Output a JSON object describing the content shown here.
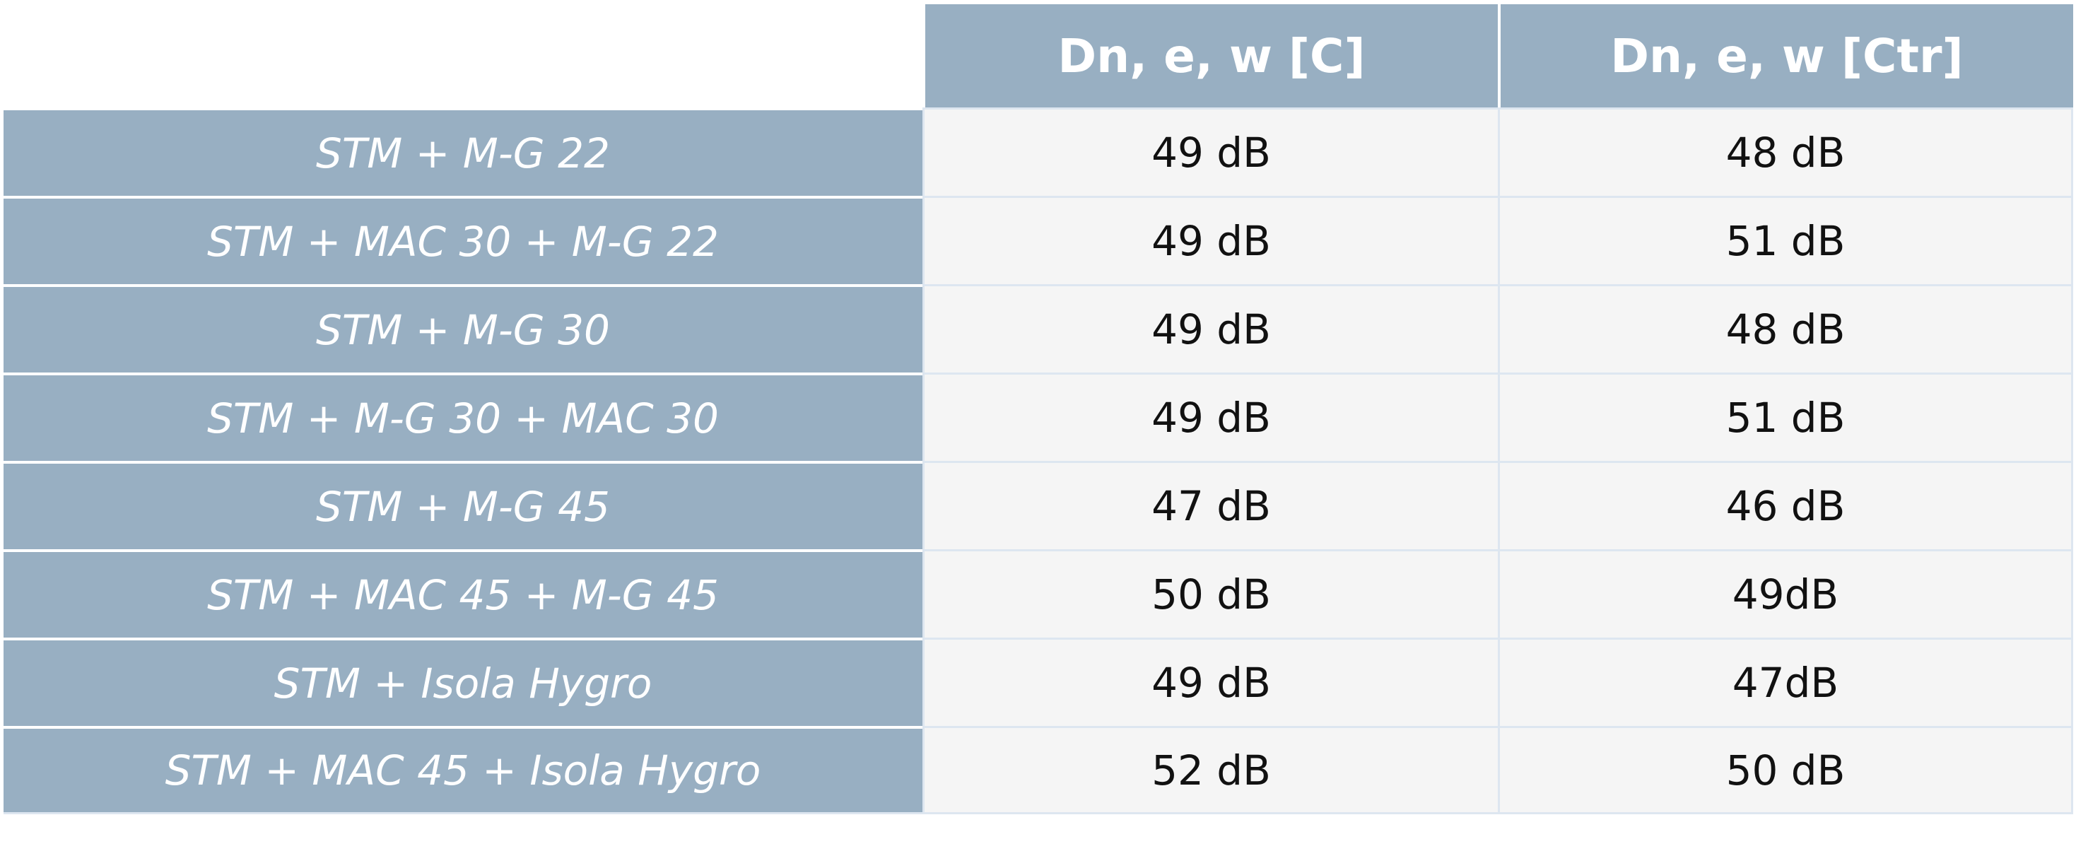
{
  "table": {
    "columns": [
      "Dn, e, w [C]",
      "Dn, e, w [Ctr]"
    ],
    "rows": [
      [
        "STM + M-G 22",
        "49 dB",
        "48 dB"
      ],
      [
        "STM + MAC 30 + M-G 22",
        "49 dB",
        "51 dB"
      ],
      [
        "STM + M-G 30",
        "49 dB",
        "48 dB"
      ],
      [
        "STM + M-G 30 + MAC 30",
        "49 dB",
        "51 dB"
      ],
      [
        "STM + M-G 45",
        "47 dB",
        "46 dB"
      ],
      [
        "STM + MAC 45 + M-G 45",
        "50 dB",
        "49dB"
      ],
      [
        "STM + Isola Hygro",
        "49 dB",
        "47dB"
      ],
      [
        "STM + MAC 45 + Isola Hygro",
        "52 dB",
        "50 dB"
      ]
    ]
  }
}
